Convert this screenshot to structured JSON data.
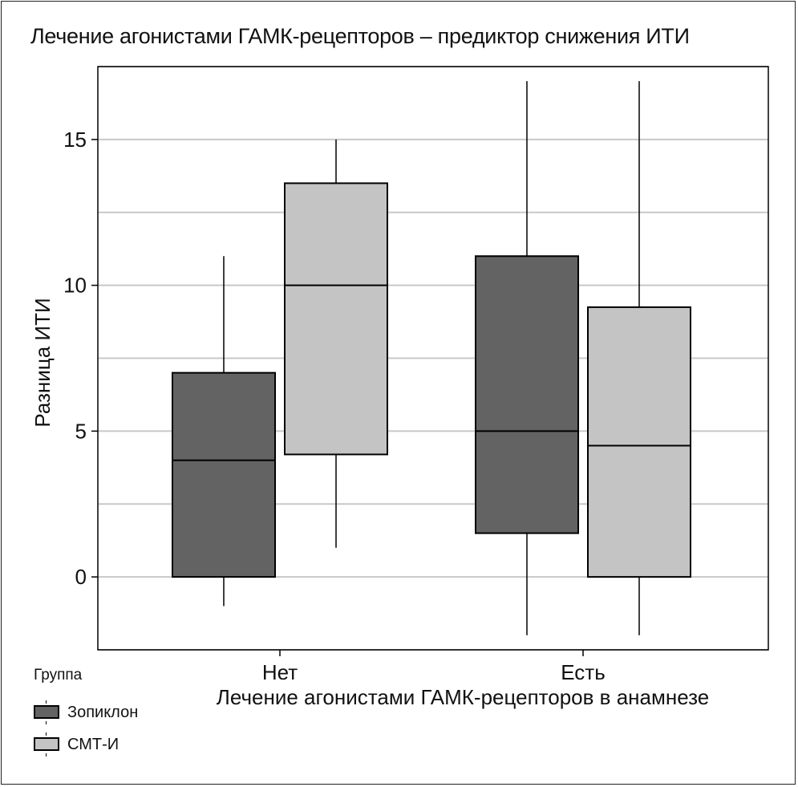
{
  "chart_data": {
    "type": "box",
    "title": "Лечение агонистами ГАМК-рецепторов – предиктор снижения ИТИ",
    "xlabel": "Лечение агонистами ГАМК-рецепторов в анамнезе",
    "ylabel": "Разница ИТИ",
    "categories": [
      "Нет",
      "Есть"
    ],
    "ylim": [
      -2.5,
      17.5
    ],
    "yticks": [
      0,
      5,
      10,
      15
    ],
    "grid": true,
    "legend": {
      "title": "Группа",
      "position": "bottom-left"
    },
    "series": [
      {
        "name": "Зопиклон",
        "color": "#636363",
        "boxes": [
          {
            "min": -1,
            "q1": 0,
            "median": 4,
            "q3": 7,
            "max": 11
          },
          {
            "min": -2,
            "q1": 1.5,
            "median": 5,
            "q3": 11,
            "max": 17
          }
        ]
      },
      {
        "name": "СМТ-И",
        "color": "#c4c4c4",
        "boxes": [
          {
            "min": 1,
            "q1": 4.2,
            "median": 10,
            "q3": 13.5,
            "max": 15
          },
          {
            "min": -2,
            "q1": 0,
            "median": 4.5,
            "q3": 9.25,
            "max": 17
          }
        ]
      }
    ]
  }
}
